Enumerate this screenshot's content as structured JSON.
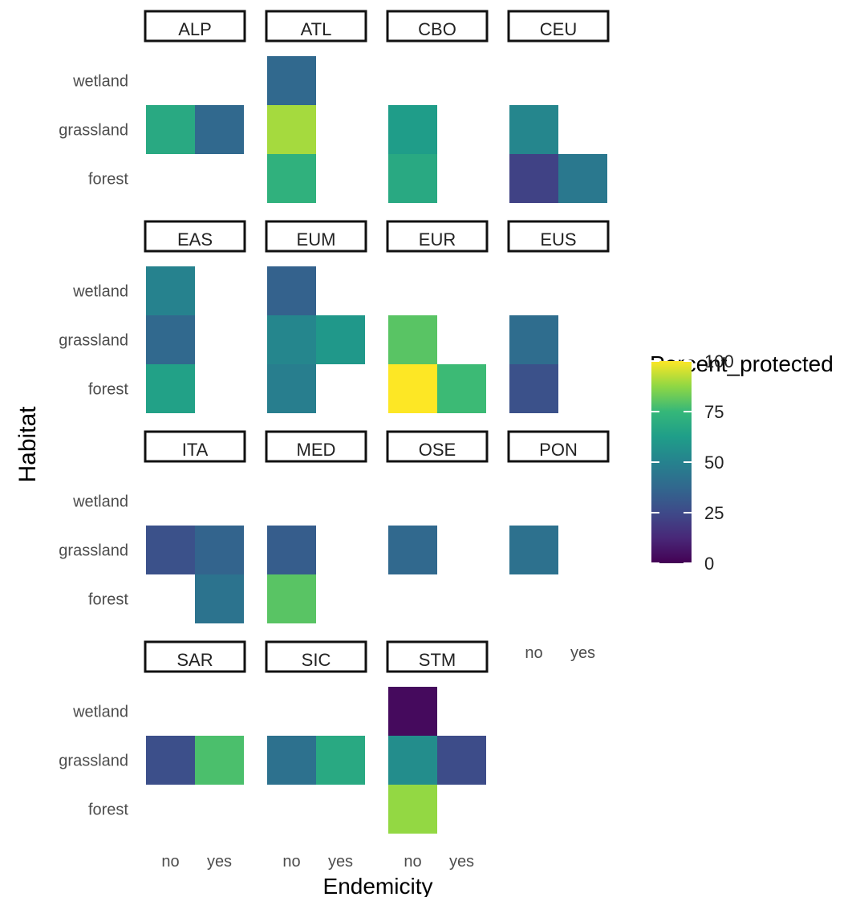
{
  "chart_data": {
    "type": "heatmap",
    "title": "",
    "xlabel": "Endemicity",
    "ylabel": "Habitat",
    "x_categories": [
      "no",
      "yes"
    ],
    "y_categories": [
      "forest",
      "grassland",
      "wetland"
    ],
    "legend": {
      "title": "Percent_protected",
      "range": [
        0,
        100
      ],
      "ticks": [
        0,
        25,
        50,
        75,
        100
      ],
      "placement": "right",
      "palette": "viridis"
    },
    "facets": [
      {
        "name": "ALP",
        "cells": [
          {
            "x": "no",
            "y": "grassland",
            "value": 68
          },
          {
            "x": "yes",
            "y": "grassland",
            "value": 38
          }
        ]
      },
      {
        "name": "ATL",
        "cells": [
          {
            "x": "no",
            "y": "wetland",
            "value": 38
          },
          {
            "x": "no",
            "y": "grassland",
            "value": 90
          },
          {
            "x": "no",
            "y": "forest",
            "value": 72
          }
        ]
      },
      {
        "name": "CBO",
        "cells": [
          {
            "x": "no",
            "y": "grassland",
            "value": 62
          },
          {
            "x": "no",
            "y": "forest",
            "value": 68
          }
        ]
      },
      {
        "name": "CEU",
        "cells": [
          {
            "x": "no",
            "y": "grassland",
            "value": 52
          },
          {
            "x": "no",
            "y": "forest",
            "value": 22
          },
          {
            "x": "yes",
            "y": "forest",
            "value": 45
          }
        ]
      },
      {
        "name": "EAS",
        "cells": [
          {
            "x": "no",
            "y": "wetland",
            "value": 50
          },
          {
            "x": "no",
            "y": "grassland",
            "value": 38
          },
          {
            "x": "no",
            "y": "forest",
            "value": 64
          }
        ]
      },
      {
        "name": "EUM",
        "cells": [
          {
            "x": "no",
            "y": "wetland",
            "value": 35
          },
          {
            "x": "no",
            "y": "grassland",
            "value": 52
          },
          {
            "x": "yes",
            "y": "grassland",
            "value": 60
          },
          {
            "x": "no",
            "y": "forest",
            "value": 48
          }
        ]
      },
      {
        "name": "EUR",
        "cells": [
          {
            "x": "no",
            "y": "grassland",
            "value": 80
          },
          {
            "x": "no",
            "y": "forest",
            "value": 100
          },
          {
            "x": "yes",
            "y": "forest",
            "value": 76
          }
        ]
      },
      {
        "name": "EUS",
        "cells": [
          {
            "x": "no",
            "y": "grassland",
            "value": 40
          },
          {
            "x": "no",
            "y": "forest",
            "value": 28
          }
        ]
      },
      {
        "name": "ITA",
        "cells": [
          {
            "x": "no",
            "y": "grassland",
            "value": 28
          },
          {
            "x": "yes",
            "y": "grassland",
            "value": 36
          },
          {
            "x": "yes",
            "y": "forest",
            "value": 43
          }
        ]
      },
      {
        "name": "MED",
        "cells": [
          {
            "x": "no",
            "y": "grassland",
            "value": 33
          },
          {
            "x": "no",
            "y": "forest",
            "value": 80
          }
        ]
      },
      {
        "name": "OSE",
        "cells": [
          {
            "x": "no",
            "y": "grassland",
            "value": 38
          }
        ]
      },
      {
        "name": "PON",
        "cells": [
          {
            "x": "no",
            "y": "grassland",
            "value": 42
          }
        ]
      },
      {
        "name": "SAR",
        "cells": [
          {
            "x": "no",
            "y": "grassland",
            "value": 27
          },
          {
            "x": "yes",
            "y": "grassland",
            "value": 78
          }
        ]
      },
      {
        "name": "SIC",
        "cells": [
          {
            "x": "no",
            "y": "grassland",
            "value": 42
          },
          {
            "x": "yes",
            "y": "grassland",
            "value": 68
          }
        ]
      },
      {
        "name": "STM",
        "cells": [
          {
            "x": "no",
            "y": "wetland",
            "value": 3
          },
          {
            "x": "no",
            "y": "grassland",
            "value": 55
          },
          {
            "x": "yes",
            "y": "grassland",
            "value": 26
          },
          {
            "x": "no",
            "y": "forest",
            "value": 88
          }
        ]
      }
    ]
  }
}
